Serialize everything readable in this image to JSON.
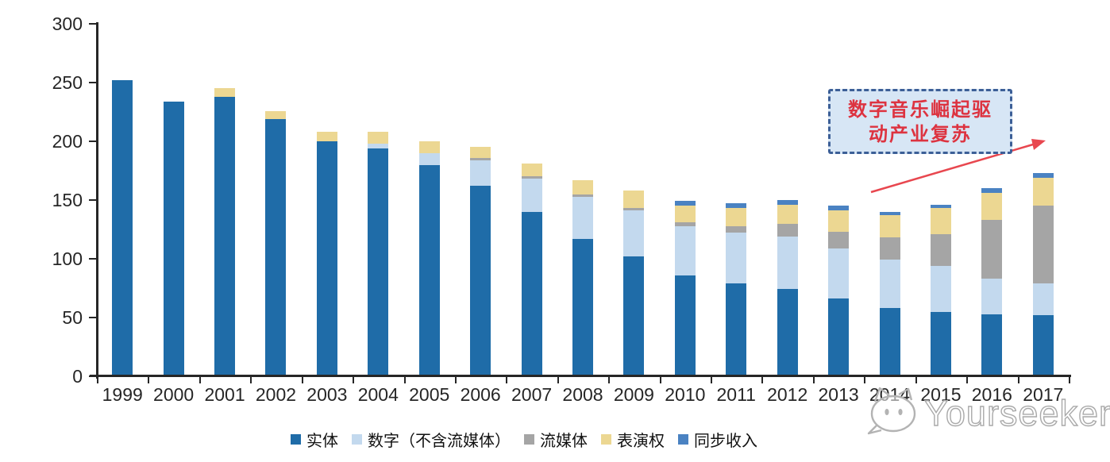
{
  "chart_data": {
    "type": "bar",
    "stacked": true,
    "title": "",
    "xlabel": "",
    "ylabel": "",
    "categories": [
      "1999",
      "2000",
      "2001",
      "2002",
      "2003",
      "2004",
      "2005",
      "2006",
      "2007",
      "2008",
      "2009",
      "2010",
      "2011",
      "2012",
      "2013",
      "2014",
      "2015",
      "2016",
      "2017"
    ],
    "series": [
      {
        "name": "实体",
        "color": "#1f6ca8",
        "values": [
          252,
          234,
          238,
          219,
          200,
          194,
          180,
          162,
          140,
          117,
          102,
          86,
          79,
          74,
          66,
          58,
          55,
          53,
          52
        ]
      },
      {
        "name": "数字（不含流媒体）",
        "color": "#c3d9ee",
        "values": [
          0,
          0,
          0,
          0,
          0,
          4,
          10,
          22,
          28,
          36,
          39,
          42,
          43,
          45,
          43,
          41,
          39,
          30,
          27
        ]
      },
      {
        "name": "流媒体",
        "color": "#a5a5a5",
        "values": [
          0,
          0,
          0,
          0,
          0,
          0,
          0,
          2,
          2,
          2,
          2,
          3,
          6,
          11,
          14,
          19,
          27,
          50,
          66
        ]
      },
      {
        "name": "表演权",
        "color": "#ecd792",
        "values": [
          0,
          0,
          7,
          7,
          8,
          10,
          10,
          9,
          11,
          12,
          15,
          14,
          15,
          16,
          18,
          19,
          22,
          23,
          24
        ]
      },
      {
        "name": "同步收入",
        "color": "#4a82c2",
        "values": [
          0,
          0,
          0,
          0,
          0,
          0,
          0,
          0,
          0,
          0,
          0,
          4,
          4,
          4,
          4,
          3,
          3,
          4,
          4
        ]
      }
    ],
    "ylim": [
      0,
      300
    ],
    "yticks": [
      0,
      50,
      100,
      150,
      200,
      250,
      300
    ],
    "grid": false,
    "legend_position": "bottom"
  },
  "annotation": {
    "line1": "数字音乐崛起驱",
    "line2": "动产业复苏",
    "text_color": "#dd3340",
    "box_fill": "#d7e6f5",
    "box_border": "#3c5f97",
    "arrow_color": "#e8474f"
  },
  "watermark": {
    "text": "Yourseeker"
  }
}
